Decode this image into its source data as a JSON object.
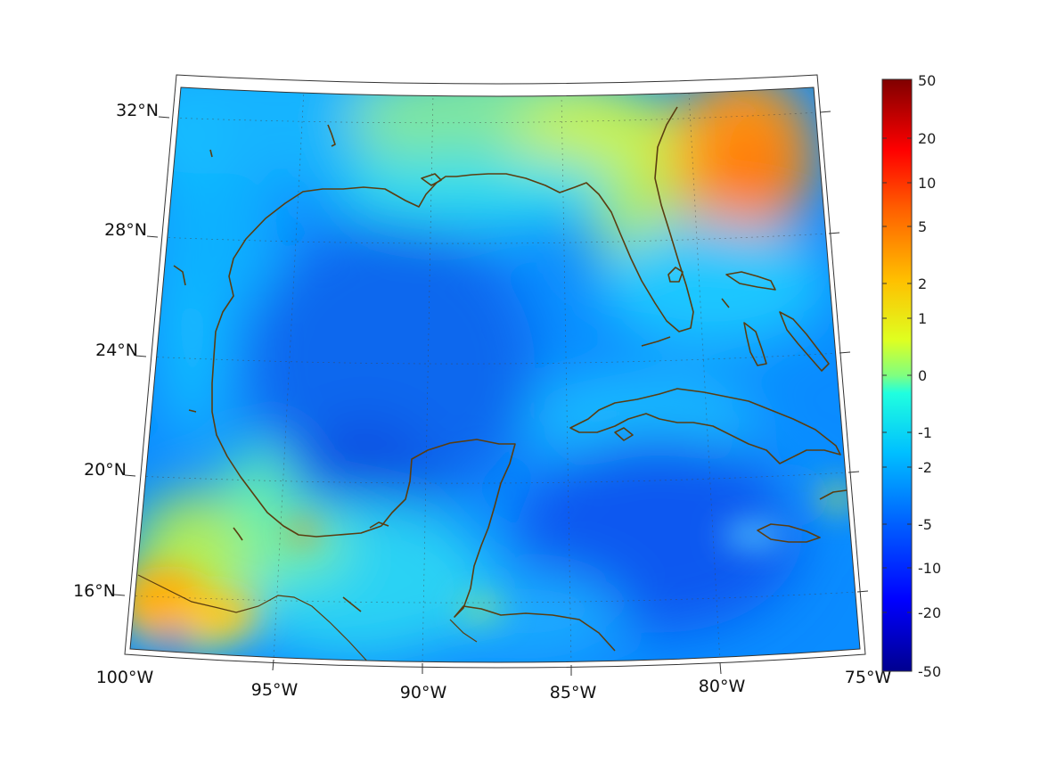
{
  "map": {
    "lat_labels": [
      "32°N",
      "28°N",
      "24°N",
      "20°N",
      "16°N"
    ],
    "lon_labels": [
      "100°W",
      "95°W",
      "90°W",
      "85°W",
      "80°W",
      "75°W"
    ]
  },
  "colorbar": {
    "tick_labels": [
      "50",
      "20",
      "10",
      "5",
      "2",
      "1",
      "0",
      "-1",
      "-2",
      "-5",
      "-10",
      "-20",
      "-50"
    ],
    "colormap": [
      "#00008f",
      "#0000ff",
      "#0060ff",
      "#00c0ff",
      "#20ffdf",
      "#80ff80",
      "#dfff20",
      "#ffc000",
      "#ff6000",
      "#ff0000",
      "#800000"
    ]
  },
  "colors": {
    "coastline": "#5a3d10"
  }
}
